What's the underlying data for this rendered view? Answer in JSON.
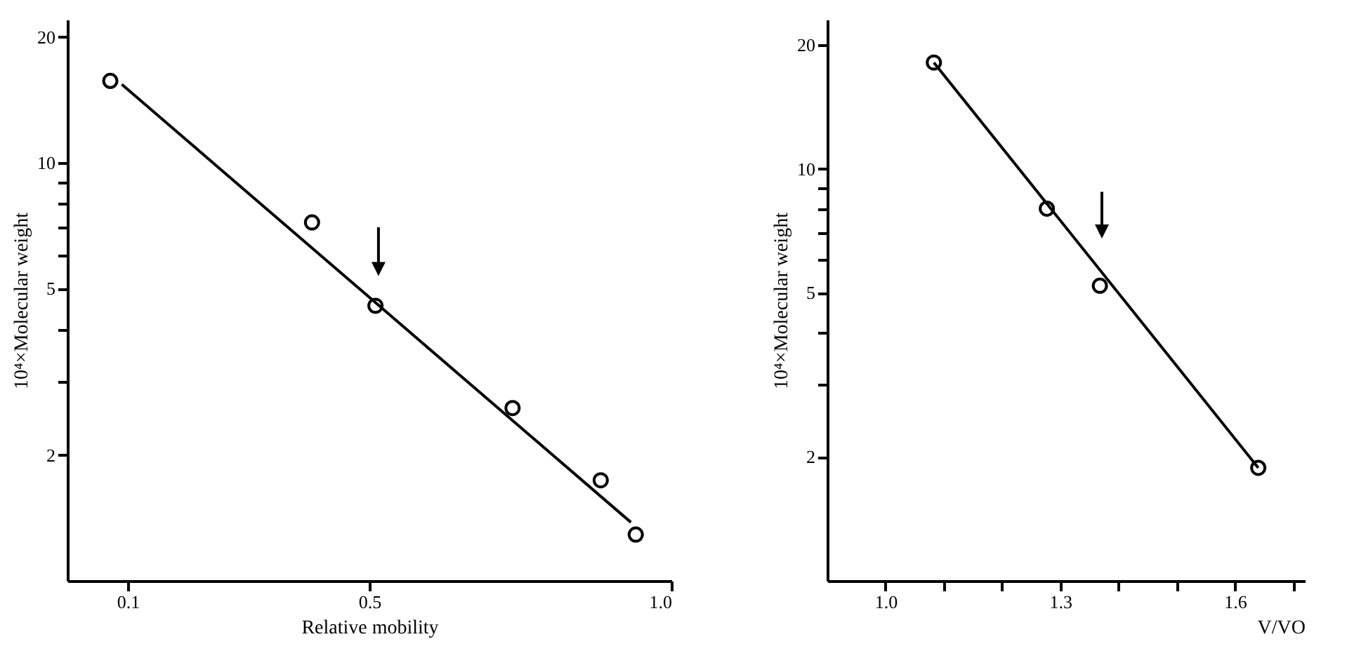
{
  "chart_data": [
    {
      "type": "scatter",
      "xlabel": "Relative mobility",
      "ylabel": "10⁴×Molecular weight",
      "log": "y",
      "grid": false,
      "xlim": [
        0,
        1.0
      ],
      "xticks": [
        0.1,
        0.5,
        {
          "value": 1.0,
          "label": "1.0"
        }
      ],
      "ylim": [
        1,
        22
      ],
      "yticks": [
        2,
        {
          "value": 3,
          "label": null
        },
        {
          "value": 4,
          "label": null
        },
        5,
        {
          "value": 6,
          "label": null
        },
        {
          "value": 7,
          "label": null
        },
        {
          "value": 8,
          "label": null
        },
        {
          "value": 9,
          "label": null
        },
        10,
        20
      ],
      "series": [
        {
          "color": "#000000",
          "marker": "circle",
          "x": [
            0.071,
            0.405,
            0.51,
            0.737,
            0.883,
            0.941
          ],
          "values": [
            15.7,
            7.2,
            4.55,
            2.59,
            1.74,
            1.29
          ]
        },
        {
          "type": "line",
          "color": "#000000",
          "x": [
            0.09,
            0.933
          ],
          "values": [
            15.4,
            1.38
          ]
        }
      ]
    },
    {
      "type": "scatter",
      "xlabel": "V/VO",
      "ylabel": "10⁴×Molecular weight",
      "log": "y",
      "grid": false,
      "xlim": [
        0.9,
        1.72
      ],
      "xticks": [
        {
          "value": 1.0,
          "label": "1.0"
        },
        {
          "value": 1.1,
          "label": null
        },
        {
          "value": 1.2,
          "label": null
        },
        1.3,
        {
          "value": 1.4,
          "label": null
        },
        {
          "value": 1.5,
          "label": null
        },
        1.6,
        {
          "value": 1.7,
          "label": null
        }
      ],
      "ylim": [
        1,
        23
      ],
      "yticks": [
        2,
        {
          "value": 3,
          "label": null
        },
        {
          "value": 4,
          "label": null
        },
        5,
        {
          "value": 6,
          "label": null
        },
        {
          "value": 7,
          "label": null
        },
        {
          "value": 8,
          "label": null
        },
        {
          "value": 9,
          "label": null
        },
        10,
        20
      ],
      "series": [
        {
          "color": "#000000",
          "marker": "circle",
          "x": [
            1.083,
            1.277,
            1.368,
            1.64
          ],
          "values": [
            18.1,
            8.0,
            5.2,
            1.88
          ]
        },
        {
          "type": "line",
          "color": "#000000",
          "x": [
            1.083,
            1.64
          ],
          "values": [
            18.1,
            1.88
          ]
        }
      ]
    }
  ]
}
